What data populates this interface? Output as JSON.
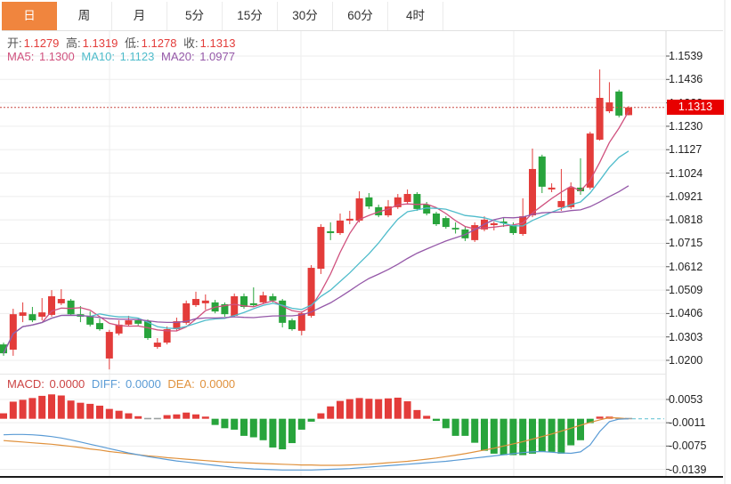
{
  "tabs": {
    "items": [
      {
        "label": "日",
        "selected": true
      },
      {
        "label": "周",
        "selected": false
      },
      {
        "label": "月",
        "selected": false
      },
      {
        "label": "5分",
        "selected": false
      },
      {
        "label": "15分",
        "selected": false
      },
      {
        "label": "30分",
        "selected": false
      },
      {
        "label": "60分",
        "selected": false
      },
      {
        "label": "4时",
        "selected": false
      }
    ]
  },
  "ohlc": {
    "open_label": "开:",
    "open": "1.1279",
    "high_label": "高:",
    "high": "1.1319",
    "low_label": "低:",
    "low": "1.1278",
    "close_label": "收:",
    "close": "1.1313"
  },
  "ma": {
    "ma5_label": "MA5:",
    "ma5": "1.1300",
    "ma10_label": "MA10:",
    "ma10": "1.1123",
    "ma20_label": "MA20:",
    "ma20": "1.0977"
  },
  "macd_readout": {
    "macd_label": "MACD:",
    "macd": "0.0000",
    "diff_label": "DIFF:",
    "diff": "0.0000",
    "dea_label": "DEA:",
    "dea": "0.0000"
  },
  "axes": {
    "price_labels": [
      "1.1539",
      "1.1436",
      "1.1333",
      "1.1230",
      "1.1127",
      "1.1024",
      "1.0921",
      "1.0818",
      "1.0715",
      "1.0612",
      "1.0509",
      "1.0406",
      "1.0303",
      "1.0200"
    ],
    "macd_labels": [
      "0.0053",
      "-0.0011",
      "-0.0075",
      "-0.0139"
    ],
    "current_price_tag": "1.1313"
  },
  "colors": {
    "up": "#E33C3A",
    "down": "#28A43C",
    "ma5": "#D0517E",
    "ma10": "#4FBCCB",
    "ma20": "#9558A8",
    "diff": "#5A9BD5",
    "dea": "#E0913C",
    "macd_label": "#CC4444",
    "tag_bg": "#E80000",
    "dotted_line": "#C94A43",
    "grid": "#EDEDED",
    "tab_accent": "#F0853E",
    "zero_dash": "#6FC8D6",
    "neutral_dash": "#9aa0a0"
  },
  "chart_data": {
    "type": "candlestick+macd",
    "title": "",
    "main": {
      "ylim": [
        1.02,
        1.1539
      ],
      "yticks": [
        1.1539,
        1.1436,
        1.1333,
        1.123,
        1.1127,
        1.1024,
        1.0921,
        1.0818,
        1.0715,
        1.0612,
        1.0509,
        1.0406,
        1.0303,
        1.02
      ],
      "current_price": 1.1313,
      "ma_windows": [
        5,
        10,
        20
      ],
      "candles_ohlc": [
        [
          1.027,
          1.0278,
          1.022,
          1.0231
        ],
        [
          1.0247,
          1.0427,
          1.022,
          1.0403
        ],
        [
          1.0396,
          1.0455,
          1.0368,
          1.0411
        ],
        [
          1.0403,
          1.0435,
          1.0368,
          1.0376
        ],
        [
          1.0392,
          1.0474,
          1.0376,
          1.0411
        ],
        [
          1.04,
          1.0509,
          1.0392,
          1.0482
        ],
        [
          1.0451,
          1.0513,
          1.0443,
          1.047
        ],
        [
          1.0463,
          1.047,
          1.0396,
          1.0403
        ],
        [
          1.0403,
          1.0439,
          1.0368,
          1.0392
        ],
        [
          1.0396,
          1.0415,
          1.0349,
          1.0357
        ],
        [
          1.0364,
          1.0384,
          1.033,
          1.0337
        ],
        [
          1.0208,
          1.0334,
          1.016,
          1.0325
        ],
        [
          1.0318,
          1.0376,
          1.031,
          1.0357
        ],
        [
          1.0357,
          1.0396,
          1.0349,
          1.0376
        ],
        [
          1.0376,
          1.0388,
          1.0353,
          1.0361
        ],
        [
          1.0372,
          1.038,
          1.029,
          1.0298
        ],
        [
          1.0259,
          1.0298,
          1.0251,
          1.0278
        ],
        [
          1.0278,
          1.0349,
          1.027,
          1.0337
        ],
        [
          1.0337,
          1.0388,
          1.033,
          1.0372
        ],
        [
          1.0365,
          1.0463,
          1.0357,
          1.0451
        ],
        [
          1.0443,
          1.0502,
          1.0435,
          1.047
        ],
        [
          1.0451,
          1.049,
          1.0423,
          1.0463
        ],
        [
          1.0455,
          1.0466,
          1.0407,
          1.0415
        ],
        [
          1.0447,
          1.0455,
          1.0392,
          1.0403
        ],
        [
          1.0396,
          1.0494,
          1.039,
          1.0482
        ],
        [
          1.0482,
          1.0494,
          1.0427,
          1.0435
        ],
        [
          1.0451,
          1.0521,
          1.0435,
          1.0443
        ],
        [
          1.0455,
          1.0502,
          1.0447,
          1.0486
        ],
        [
          1.0482,
          1.0494,
          1.0455,
          1.0463
        ],
        [
          1.0463,
          1.047,
          1.0345,
          1.0365
        ],
        [
          1.0376,
          1.0384,
          1.033,
          1.0337
        ],
        [
          1.033,
          1.0415,
          1.031,
          1.0407
        ],
        [
          1.0396,
          1.0619,
          1.0388,
          1.0607
        ],
        [
          1.0603,
          1.0799,
          1.058,
          1.0787
        ],
        [
          1.0768,
          1.0807,
          1.0729,
          1.076
        ],
        [
          1.076,
          1.0846,
          1.0752,
          1.0815
        ],
        [
          1.0815,
          1.0858,
          1.0799,
          1.0823
        ],
        [
          1.0815,
          1.0944,
          1.0807,
          1.0913
        ],
        [
          1.0917,
          1.0936,
          1.0866,
          1.0877
        ],
        [
          1.0874,
          1.0885,
          1.083,
          1.0838
        ],
        [
          1.0838,
          1.0905,
          1.083,
          1.0877
        ],
        [
          1.0874,
          1.0932,
          1.0866,
          1.0917
        ],
        [
          1.0897,
          1.0952,
          1.0885,
          1.0932
        ],
        [
          1.0932,
          1.094,
          1.0858,
          1.0866
        ],
        [
          1.0885,
          1.0897,
          1.0838,
          1.0846
        ],
        [
          1.0846,
          1.0854,
          1.0791,
          1.0799
        ],
        [
          1.0826,
          1.0834,
          1.0779,
          1.0787
        ],
        [
          1.0783,
          1.0807,
          1.0758,
          1.0776
        ],
        [
          1.0776,
          1.0787,
          1.0725,
          1.0737
        ],
        [
          1.0729,
          1.0807,
          1.0721,
          1.0795
        ],
        [
          1.0776,
          1.0834,
          1.0768,
          1.0819
        ],
        [
          1.0795,
          1.0811,
          1.0772,
          1.0803
        ],
        [
          1.0811,
          1.0826,
          1.0787,
          1.0803
        ],
        [
          1.0795,
          1.0807,
          1.0752,
          1.076
        ],
        [
          1.0756,
          1.0913,
          1.0748,
          1.0834
        ],
        [
          1.0838,
          1.1132,
          1.083,
          1.1042
        ],
        [
          1.1097,
          1.1105,
          1.0936,
          1.0964
        ],
        [
          1.0952,
          1.0979,
          1.094,
          1.096
        ],
        [
          1.0874,
          1.1042,
          1.0858,
          1.0901
        ],
        [
          1.0874,
          1.0983,
          1.0866,
          1.096
        ],
        [
          1.096,
          1.1089,
          1.0928,
          1.0944
        ],
        [
          1.096,
          1.1206,
          1.0952,
          1.1198
        ],
        [
          1.1171,
          1.148,
          1.1167,
          1.1355
        ],
        [
          1.1296,
          1.1424,
          1.1288,
          1.1335
        ],
        [
          1.1383,
          1.1391,
          1.1269,
          1.1277
        ],
        [
          1.1279,
          1.1319,
          1.1278,
          1.1313
        ]
      ]
    },
    "macd": {
      "yticks": [
        0.0053,
        -0.0011,
        -0.0075,
        -0.0139
      ],
      "histogram": [
        0.0015,
        0.0047,
        0.0052,
        0.0057,
        0.0063,
        0.0067,
        0.0064,
        0.005,
        0.0044,
        0.0041,
        0.0036,
        0.0027,
        0.0022,
        0.0015,
        0.0007,
        0.0001,
        -0.0001,
        0.001,
        0.0012,
        0.0017,
        0.0012,
        0.0005,
        -0.0017,
        -0.0026,
        -0.003,
        -0.0047,
        -0.0051,
        -0.0059,
        -0.0079,
        -0.0084,
        -0.0067,
        -0.003,
        -0.0008,
        0.0015,
        0.0034,
        0.0049,
        0.0054,
        0.0057,
        0.0055,
        0.0054,
        0.0056,
        0.0058,
        0.0048,
        0.0024,
        0.0008,
        -0.0005,
        -0.0026,
        -0.0047,
        -0.0047,
        -0.0066,
        -0.0088,
        -0.0096,
        -0.01,
        -0.01,
        -0.01,
        -0.0096,
        -0.0091,
        -0.0091,
        -0.0096,
        -0.0073,
        -0.0059,
        -0.0012,
        0.0004,
        0.0003,
        -0.0002,
        0.0
      ],
      "diff": [
        -0.0044,
        -0.0043,
        -0.0043,
        -0.0044,
        -0.0046,
        -0.0049,
        -0.0053,
        -0.0058,
        -0.0064,
        -0.007,
        -0.0076,
        -0.0082,
        -0.0088,
        -0.0094,
        -0.0099,
        -0.0104,
        -0.0108,
        -0.0112,
        -0.0116,
        -0.0119,
        -0.0122,
        -0.0125,
        -0.0128,
        -0.0131,
        -0.0134,
        -0.0136,
        -0.0138,
        -0.0139,
        -0.014,
        -0.0141,
        -0.0141,
        -0.0141,
        -0.0141,
        -0.014,
        -0.0139,
        -0.0138,
        -0.0137,
        -0.0135,
        -0.0133,
        -0.0131,
        -0.0129,
        -0.0127,
        -0.0125,
        -0.0123,
        -0.0121,
        -0.0119,
        -0.0117,
        -0.0114,
        -0.0111,
        -0.0108,
        -0.0105,
        -0.0102,
        -0.0099,
        -0.0096,
        -0.0093,
        -0.0091,
        -0.009,
        -0.0092,
        -0.0094,
        -0.0095,
        -0.0091,
        -0.0072,
        -0.0035,
        -0.0008,
        -0.0001,
        0.0
      ],
      "dea": [
        -0.006,
        -0.0062,
        -0.0064,
        -0.0066,
        -0.0068,
        -0.007,
        -0.0073,
        -0.0076,
        -0.0079,
        -0.0083,
        -0.0086,
        -0.009,
        -0.0093,
        -0.0096,
        -0.0099,
        -0.0102,
        -0.0104,
        -0.0107,
        -0.0109,
        -0.0111,
        -0.0113,
        -0.0115,
        -0.0117,
        -0.0119,
        -0.012,
        -0.0121,
        -0.0122,
        -0.0123,
        -0.0124,
        -0.0125,
        -0.0126,
        -0.0127,
        -0.0127,
        -0.0128,
        -0.0128,
        -0.0128,
        -0.0127,
        -0.0126,
        -0.0125,
        -0.0123,
        -0.0121,
        -0.0119,
        -0.0117,
        -0.0114,
        -0.0111,
        -0.0108,
        -0.0104,
        -0.01,
        -0.0096,
        -0.0091,
        -0.0086,
        -0.0081,
        -0.0075,
        -0.0069,
        -0.0063,
        -0.0056,
        -0.0049,
        -0.0042,
        -0.0034,
        -0.0026,
        -0.0018,
        -0.001,
        -0.0003,
        0.0003,
        0.0002,
        0.0
      ]
    }
  }
}
